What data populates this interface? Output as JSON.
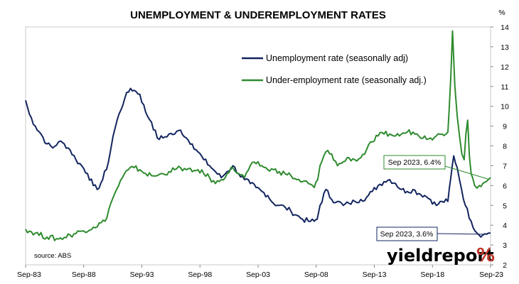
{
  "chart_data": {
    "type": "line",
    "title": "UNEMPLOYMENT & UNDEREMPLOYMENT RATES",
    "y_unit": "%",
    "xlim": [
      "Sep-83",
      "Sep-23"
    ],
    "ylim": [
      2,
      14
    ],
    "y_axis_side": "right",
    "grid": false,
    "legend_position": "top-center",
    "x_ticks": [
      "Sep-83",
      "Sep-88",
      "Sep-93",
      "Sep-98",
      "Sep-03",
      "Sep-08",
      "Sep-13",
      "Sep-18",
      "Sep-23"
    ],
    "y_ticks": [
      2,
      3,
      4,
      5,
      6,
      7,
      8,
      9,
      10,
      11,
      12,
      13,
      14
    ],
    "series": [
      {
        "name": "Unemployment rate (seasonally adj)",
        "color": "#12255f",
        "points": [
          [
            1983.67,
            10.3
          ],
          [
            1984.0,
            9.6
          ],
          [
            1984.5,
            9.0
          ],
          [
            1985.0,
            8.6
          ],
          [
            1985.5,
            8.1
          ],
          [
            1986.0,
            7.9
          ],
          [
            1986.5,
            8.2
          ],
          [
            1987.0,
            8.1
          ],
          [
            1987.5,
            7.8
          ],
          [
            1988.0,
            7.3
          ],
          [
            1988.5,
            7.0
          ],
          [
            1989.0,
            6.6
          ],
          [
            1989.5,
            6.0
          ],
          [
            1989.83,
            5.8
          ],
          [
            1990.3,
            6.3
          ],
          [
            1990.8,
            7.2
          ],
          [
            1991.2,
            8.5
          ],
          [
            1991.7,
            9.6
          ],
          [
            1992.2,
            10.4
          ],
          [
            1992.7,
            10.9
          ],
          [
            1993.0,
            10.8
          ],
          [
            1993.5,
            10.6
          ],
          [
            1994.0,
            9.7
          ],
          [
            1994.5,
            9.2
          ],
          [
            1995.0,
            8.4
          ],
          [
            1995.5,
            8.4
          ],
          [
            1996.0,
            8.6
          ],
          [
            1996.5,
            8.6
          ],
          [
            1997.0,
            8.8
          ],
          [
            1997.5,
            8.4
          ],
          [
            1998.0,
            8.1
          ],
          [
            1998.5,
            7.7
          ],
          [
            1999.0,
            7.3
          ],
          [
            1999.5,
            7.0
          ],
          [
            2000.0,
            6.7
          ],
          [
            2000.5,
            6.4
          ],
          [
            2001.0,
            6.7
          ],
          [
            2001.5,
            7.0
          ],
          [
            2002.0,
            6.6
          ],
          [
            2002.5,
            6.3
          ],
          [
            2003.0,
            6.1
          ],
          [
            2003.5,
            5.9
          ],
          [
            2004.0,
            5.7
          ],
          [
            2004.5,
            5.5
          ],
          [
            2005.0,
            5.1
          ],
          [
            2005.5,
            5.0
          ],
          [
            2006.0,
            4.9
          ],
          [
            2006.5,
            4.7
          ],
          [
            2007.0,
            4.5
          ],
          [
            2007.5,
            4.3
          ],
          [
            2008.0,
            4.2
          ],
          [
            2008.5,
            4.2
          ],
          [
            2008.75,
            4.3
          ],
          [
            2009.0,
            5.0
          ],
          [
            2009.5,
            5.8
          ],
          [
            2010.0,
            5.3
          ],
          [
            2010.5,
            5.2
          ],
          [
            2011.0,
            5.0
          ],
          [
            2011.5,
            5.1
          ],
          [
            2012.0,
            5.2
          ],
          [
            2012.5,
            5.3
          ],
          [
            2013.0,
            5.4
          ],
          [
            2013.5,
            5.7
          ],
          [
            2014.0,
            6.0
          ],
          [
            2014.5,
            6.2
          ],
          [
            2015.0,
            6.3
          ],
          [
            2015.5,
            6.1
          ],
          [
            2016.0,
            5.8
          ],
          [
            2016.5,
            5.7
          ],
          [
            2017.0,
            5.8
          ],
          [
            2017.5,
            5.6
          ],
          [
            2018.0,
            5.5
          ],
          [
            2018.5,
            5.3
          ],
          [
            2019.0,
            5.0
          ],
          [
            2019.5,
            5.2
          ],
          [
            2020.0,
            5.2
          ],
          [
            2020.25,
            6.4
          ],
          [
            2020.5,
            7.5
          ],
          [
            2020.8,
            6.9
          ],
          [
            2021.0,
            6.3
          ],
          [
            2021.5,
            5.0
          ],
          [
            2022.0,
            4.2
          ],
          [
            2022.5,
            3.6
          ],
          [
            2023.0,
            3.5
          ],
          [
            2023.5,
            3.6
          ],
          [
            2023.67,
            3.6
          ]
        ],
        "annotation": "Sep 2023, 3.6%"
      },
      {
        "name": "Under-employment rate (seasonally adj.)",
        "color": "#2e8b2e",
        "points": [
          [
            1983.67,
            3.8
          ],
          [
            1984.5,
            3.6
          ],
          [
            1985.5,
            3.4
          ],
          [
            1986.5,
            3.3
          ],
          [
            1987.5,
            3.5
          ],
          [
            1988.5,
            3.7
          ],
          [
            1989.5,
            3.9
          ],
          [
            1990.5,
            4.2
          ],
          [
            1991.0,
            5.1
          ],
          [
            1991.5,
            5.8
          ],
          [
            1992.0,
            6.4
          ],
          [
            1992.5,
            6.8
          ],
          [
            1993.0,
            6.9
          ],
          [
            1993.5,
            6.8
          ],
          [
            1994.0,
            6.6
          ],
          [
            1994.5,
            6.5
          ],
          [
            1995.0,
            6.5
          ],
          [
            1995.5,
            6.6
          ],
          [
            1996.0,
            6.7
          ],
          [
            1996.5,
            6.8
          ],
          [
            1997.0,
            6.9
          ],
          [
            1997.5,
            6.8
          ],
          [
            1998.0,
            6.7
          ],
          [
            1998.5,
            6.8
          ],
          [
            1999.0,
            6.6
          ],
          [
            1999.5,
            6.4
          ],
          [
            2000.0,
            6.1
          ],
          [
            2000.5,
            6.3
          ],
          [
            2001.0,
            6.6
          ],
          [
            2001.5,
            6.9
          ],
          [
            2002.0,
            6.6
          ],
          [
            2002.5,
            6.4
          ],
          [
            2003.0,
            7.0
          ],
          [
            2003.5,
            7.1
          ],
          [
            2004.0,
            7.0
          ],
          [
            2004.5,
            6.8
          ],
          [
            2005.0,
            6.8
          ],
          [
            2005.5,
            6.7
          ],
          [
            2006.0,
            6.6
          ],
          [
            2006.5,
            6.5
          ],
          [
            2007.0,
            6.3
          ],
          [
            2007.5,
            6.2
          ],
          [
            2008.0,
            6.1
          ],
          [
            2008.5,
            5.9
          ],
          [
            2008.8,
            6.3
          ],
          [
            2009.0,
            7.0
          ],
          [
            2009.5,
            7.7
          ],
          [
            2010.0,
            7.6
          ],
          [
            2010.5,
            7.0
          ],
          [
            2011.0,
            7.2
          ],
          [
            2011.5,
            7.4
          ],
          [
            2012.0,
            7.3
          ],
          [
            2012.5,
            7.4
          ],
          [
            2013.0,
            7.8
          ],
          [
            2013.5,
            8.2
          ],
          [
            2014.0,
            8.5
          ],
          [
            2014.5,
            8.6
          ],
          [
            2015.0,
            8.6
          ],
          [
            2015.5,
            8.5
          ],
          [
            2016.0,
            8.6
          ],
          [
            2016.5,
            8.7
          ],
          [
            2017.0,
            8.7
          ],
          [
            2017.5,
            8.5
          ],
          [
            2018.0,
            8.5
          ],
          [
            2018.5,
            8.4
          ],
          [
            2019.0,
            8.5
          ],
          [
            2019.5,
            8.6
          ],
          [
            2020.0,
            8.7
          ],
          [
            2020.25,
            11.5
          ],
          [
            2020.4,
            13.8
          ],
          [
            2020.6,
            11.0
          ],
          [
            2020.8,
            9.5
          ],
          [
            2021.0,
            8.5
          ],
          [
            2021.2,
            7.6
          ],
          [
            2021.4,
            7.3
          ],
          [
            2021.55,
            8.6
          ],
          [
            2021.7,
            9.3
          ],
          [
            2021.85,
            7.5
          ],
          [
            2022.0,
            6.6
          ],
          [
            2022.3,
            6.0
          ],
          [
            2022.7,
            6.0
          ],
          [
            2023.0,
            6.1
          ],
          [
            2023.3,
            6.2
          ],
          [
            2023.67,
            6.4
          ]
        ],
        "annotation": "Sep 2023, 6.4%"
      }
    ],
    "source_note": "source: ABS"
  },
  "brand": {
    "logo_text": "yieldreport",
    "logo_symbol": "%"
  }
}
